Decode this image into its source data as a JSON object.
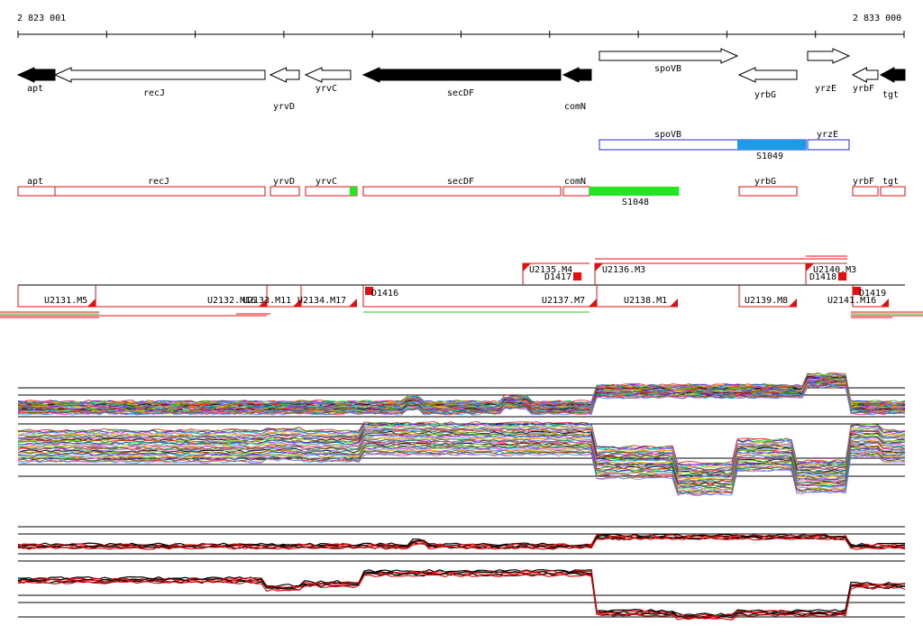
{
  "ruler": {
    "start_label": "2 823 001",
    "end_label": "2 833 000"
  },
  "genes": [
    {
      "name": "apt",
      "dir": "L",
      "fill": "black",
      "label_pos": "below"
    },
    {
      "name": "recJ",
      "dir": "L",
      "fill": "white",
      "label_pos": "below"
    },
    {
      "name": "yrvD",
      "dir": "L",
      "fill": "white",
      "label_pos": "below"
    },
    {
      "name": "yrvC",
      "dir": "L",
      "fill": "white",
      "label_pos": "below"
    },
    {
      "name": "secDF",
      "dir": "L",
      "fill": "black",
      "label_pos": "below"
    },
    {
      "name": "comN",
      "dir": "L",
      "fill": "black",
      "label_pos": "below"
    },
    {
      "name": "spoVB",
      "dir": "R",
      "fill": "white",
      "label_pos": "inside"
    },
    {
      "name": "yrbG",
      "dir": "L",
      "fill": "white",
      "label_pos": "below"
    },
    {
      "name": "yrzE",
      "dir": "R",
      "fill": "white",
      "label_pos": "below"
    },
    {
      "name": "yrbF",
      "dir": "L",
      "fill": "white",
      "label_pos": "below"
    },
    {
      "name": "tgt",
      "dir": "L",
      "fill": "black",
      "label_pos": "below"
    }
  ],
  "blue_track": {
    "boxes": [
      "spoVB",
      "yrzE"
    ],
    "segment_label": "S1049",
    "segment_color": "#1e9be6",
    "outline_color": "#1a2fcf"
  },
  "red_track": {
    "boxes": [
      "apt",
      "recJ",
      "yrvD",
      "yrvC",
      "secDF",
      "comN",
      "yrbG",
      "yrbF",
      "tgt"
    ],
    "segment_label": "S1048",
    "segment_color": "#22e622",
    "outline_color": "#e01010"
  },
  "units_above": [
    "U2135.M4",
    "U2136.M3",
    "U2140.M3"
  ],
  "units_below": [
    "U2131.M5",
    "U2132.M16",
    "U2133.M11",
    "U2134.M17",
    "U2137.M7",
    "U2138.M1",
    "U2139.M8",
    "U2141.M16"
  ],
  "downshifts": [
    "D1417",
    "D1418",
    "D1416",
    "D1419"
  ],
  "colors": {
    "red": "#e01010",
    "green": "#22cc22",
    "black": "#000000"
  }
}
